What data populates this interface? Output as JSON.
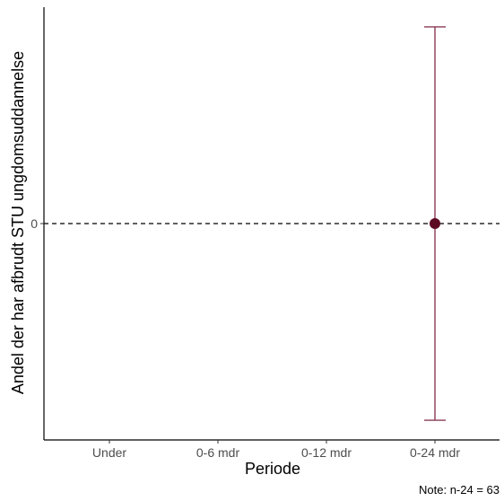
{
  "chart_data": {
    "type": "scatter",
    "categories": [
      "Under",
      "0-6 mdr",
      "0-12 mdr",
      "0-24 mdr"
    ],
    "points": [
      {
        "category": "0-24 mdr",
        "value": 0,
        "lower": -1,
        "upper": 1
      }
    ],
    "reference_line": {
      "y": 0,
      "style": "dashed"
    },
    "y_ticks": [
      "0"
    ],
    "y_tick_values": [
      0
    ],
    "ylim": [
      -1.1,
      1.1
    ],
    "xlabel": "Periode",
    "ylabel": "Andel der har afbrudt STU ungdomsuddannelse",
    "note": "Note: n-24 = 63",
    "grid": false,
    "colors": {
      "point": "#5c0a22",
      "errorbar": "#8b3a55",
      "axis": "#000000",
      "reference": "#000000"
    }
  }
}
